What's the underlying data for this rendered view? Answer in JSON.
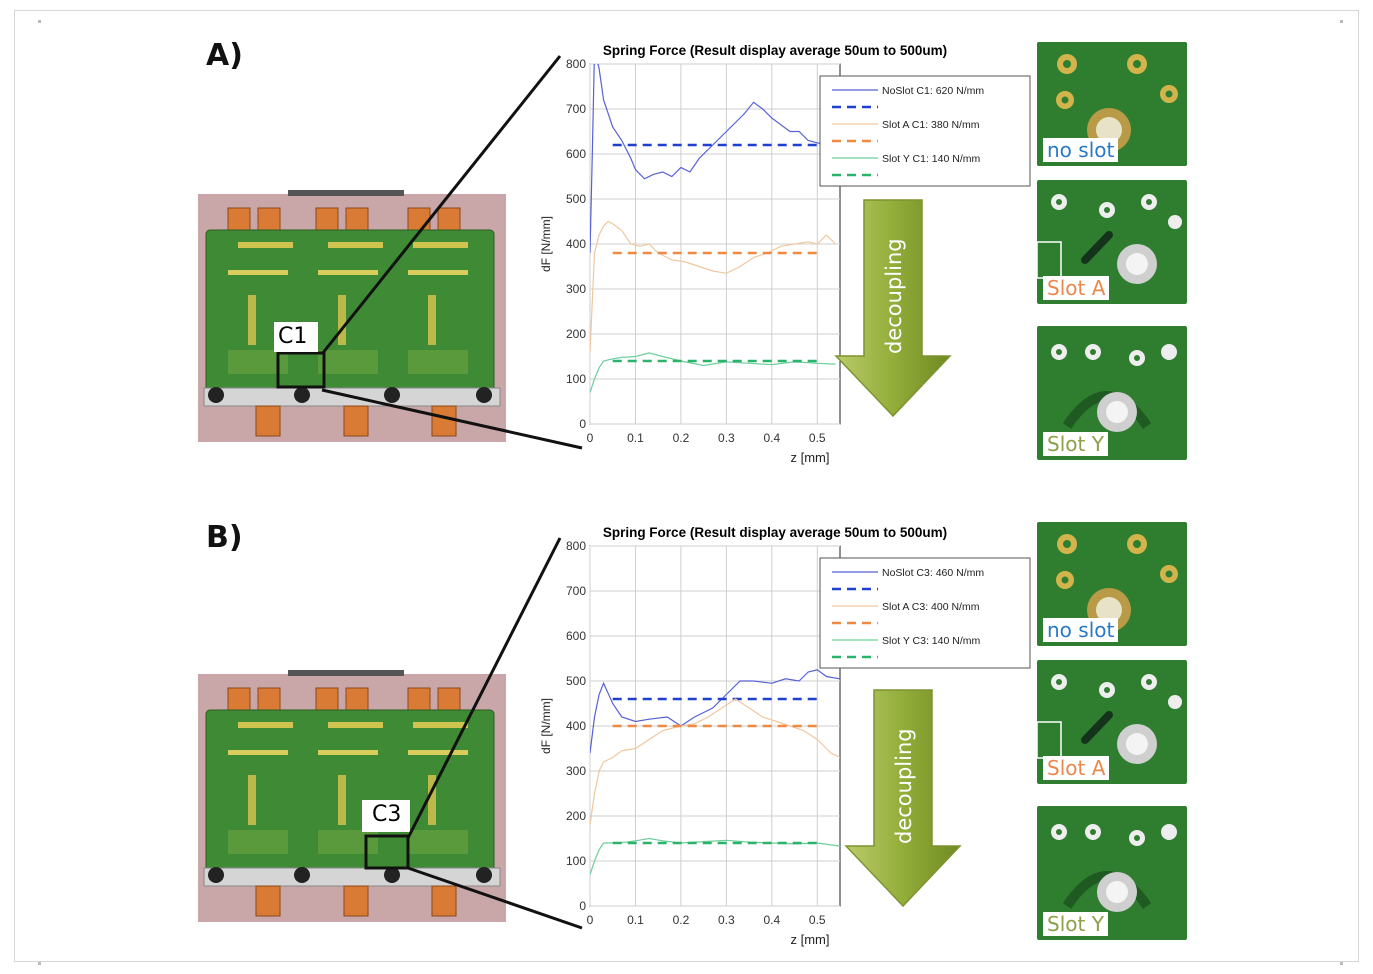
{
  "labels": {
    "panel_a": "A)",
    "panel_b": "B)"
  },
  "panels": [
    {
      "id": "A",
      "board_marker": "C1",
      "photos": [
        {
          "caption": "no slot",
          "caption_color": "#2a78c8"
        },
        {
          "caption": "Slot A",
          "caption_color": "#e8894d"
        },
        {
          "caption": "Slot Y",
          "caption_color": "#8ca04a"
        }
      ],
      "arrow_label": "decoupling"
    },
    {
      "id": "B",
      "board_marker": "C3",
      "photos": [
        {
          "caption": "no slot",
          "caption_color": "#2a78c8"
        },
        {
          "caption": "Slot A",
          "caption_color": "#e8894d"
        },
        {
          "caption": "Slot Y",
          "caption_color": "#8ca04a"
        }
      ],
      "arrow_label": "decoupling"
    }
  ],
  "chart_data": [
    {
      "type": "line",
      "title": "Spring Force (Result display average 50um to 500um)",
      "xlabel": "z [mm]",
      "ylabel": "dF [N/mm]",
      "xlim": [
        0,
        0.55
      ],
      "ylim": [
        0,
        800
      ],
      "xticks": [
        "0",
        "0.1",
        "0.2",
        "0.3",
        "0.4",
        "0.5"
      ],
      "yticks": [
        "0",
        "100",
        "200",
        "300",
        "400",
        "500",
        "600",
        "700",
        "800"
      ],
      "grid": true,
      "legend_position": "top-right",
      "series": [
        {
          "name": "NoSlot C1:  620 N/mm",
          "color": "#5561d8",
          "style": "solid",
          "x": [
            0,
            0.005,
            0.01,
            0.02,
            0.03,
            0.05,
            0.07,
            0.09,
            0.1,
            0.12,
            0.14,
            0.16,
            0.18,
            0.2,
            0.22,
            0.24,
            0.26,
            0.28,
            0.3,
            0.32,
            0.34,
            0.36,
            0.38,
            0.4,
            0.42,
            0.44,
            0.46,
            0.48,
            0.5,
            0.52
          ],
          "y": [
            380,
            600,
            830,
            790,
            720,
            660,
            630,
            590,
            565,
            545,
            555,
            560,
            550,
            570,
            560,
            590,
            610,
            630,
            650,
            670,
            690,
            715,
            700,
            680,
            665,
            650,
            650,
            630,
            625,
            620
          ]
        },
        {
          "name": "",
          "color": "#1f3fd0",
          "style": "dashed",
          "x": [
            0.05,
            0.5
          ],
          "y": [
            620,
            620
          ]
        },
        {
          "name": "Slot A C1:  380 N/mm",
          "color": "#f0c79e",
          "style": "solid",
          "x": [
            0,
            0.01,
            0.02,
            0.03,
            0.04,
            0.05,
            0.07,
            0.09,
            0.11,
            0.13,
            0.15,
            0.18,
            0.21,
            0.24,
            0.27,
            0.3,
            0.33,
            0.36,
            0.39,
            0.42,
            0.45,
            0.48,
            0.5,
            0.52,
            0.54
          ],
          "y": [
            160,
            380,
            420,
            440,
            450,
            445,
            430,
            400,
            395,
            400,
            380,
            365,
            360,
            350,
            340,
            335,
            350,
            370,
            380,
            395,
            400,
            405,
            400,
            420,
            400
          ]
        },
        {
          "name": "",
          "color": "#f08a42",
          "style": "dashed",
          "x": [
            0.05,
            0.5
          ],
          "y": [
            380,
            380
          ]
        },
        {
          "name": "Slot Y C1:  140 N/mm",
          "color": "#6ccf9c",
          "style": "solid",
          "x": [
            0,
            0.01,
            0.02,
            0.03,
            0.05,
            0.07,
            0.1,
            0.13,
            0.16,
            0.2,
            0.25,
            0.3,
            0.35,
            0.4,
            0.45,
            0.5,
            0.54
          ],
          "y": [
            70,
            100,
            125,
            140,
            145,
            148,
            150,
            158,
            150,
            140,
            130,
            138,
            135,
            132,
            138,
            135,
            133
          ]
        },
        {
          "name": "",
          "color": "#2bb36a",
          "style": "dashed",
          "x": [
            0.05,
            0.5
          ],
          "y": [
            140,
            140
          ]
        }
      ]
    },
    {
      "type": "line",
      "title": "Spring Force (Result display average 50um to 500um)",
      "xlabel": "z [mm]",
      "ylabel": "dF [N/mm]",
      "xlim": [
        0,
        0.55
      ],
      "ylim": [
        0,
        800
      ],
      "xticks": [
        "0",
        "0.1",
        "0.2",
        "0.3",
        "0.4",
        "0.5"
      ],
      "yticks": [
        "0",
        "100",
        "200",
        "300",
        "400",
        "500",
        "600",
        "700",
        "800"
      ],
      "grid": true,
      "legend_position": "top-right",
      "series": [
        {
          "name": "NoSlot C3: 460 N/mm",
          "color": "#5561d8",
          "style": "solid",
          "x": [
            0,
            0.01,
            0.02,
            0.03,
            0.05,
            0.07,
            0.1,
            0.13,
            0.17,
            0.2,
            0.23,
            0.27,
            0.3,
            0.33,
            0.36,
            0.4,
            0.43,
            0.46,
            0.48,
            0.5,
            0.52,
            0.55
          ],
          "y": [
            340,
            420,
            470,
            495,
            450,
            420,
            410,
            415,
            420,
            400,
            420,
            440,
            470,
            500,
            500,
            495,
            505,
            500,
            520,
            525,
            510,
            505
          ]
        },
        {
          "name": "",
          "color": "#1f3fd0",
          "style": "dashed",
          "x": [
            0.05,
            0.5
          ],
          "y": [
            460,
            460
          ]
        },
        {
          "name": "Slot A C3:  400 N/mm",
          "color": "#f0c79e",
          "style": "solid",
          "x": [
            0,
            0.01,
            0.02,
            0.03,
            0.05,
            0.07,
            0.1,
            0.13,
            0.16,
            0.2,
            0.23,
            0.26,
            0.29,
            0.32,
            0.35,
            0.38,
            0.41,
            0.44,
            0.47,
            0.5,
            0.53,
            0.55
          ],
          "y": [
            180,
            250,
            300,
            320,
            330,
            345,
            350,
            370,
            390,
            400,
            405,
            420,
            440,
            460,
            440,
            420,
            410,
            400,
            390,
            370,
            340,
            330
          ]
        },
        {
          "name": "",
          "color": "#f08a42",
          "style": "dashed",
          "x": [
            0.05,
            0.5
          ],
          "y": [
            400,
            400
          ]
        },
        {
          "name": "Slot Y C3: 140 N/mm",
          "color": "#6ccf9c",
          "style": "solid",
          "x": [
            0,
            0.01,
            0.02,
            0.03,
            0.05,
            0.08,
            0.1,
            0.13,
            0.16,
            0.2,
            0.25,
            0.3,
            0.35,
            0.4,
            0.45,
            0.5,
            0.55
          ],
          "y": [
            70,
            100,
            125,
            140,
            140,
            142,
            145,
            150,
            145,
            140,
            143,
            146,
            142,
            140,
            138,
            140,
            133
          ]
        },
        {
          "name": "",
          "color": "#2bb36a",
          "style": "dashed",
          "x": [
            0.05,
            0.5
          ],
          "y": [
            140,
            140
          ]
        }
      ]
    }
  ]
}
